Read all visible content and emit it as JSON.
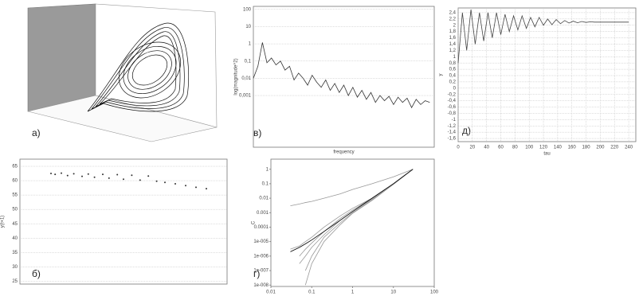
{
  "chart_data": [
    {
      "type": "attractor",
      "label": "а)"
    },
    {
      "type": "line",
      "label": "в)",
      "ylabel": "log(magnitude^2)",
      "xlabel": "frequency",
      "ylog": true,
      "grid": true,
      "color": "#333333",
      "x": [
        0,
        1,
        2,
        3,
        4,
        5,
        6,
        7,
        8,
        9,
        10,
        11,
        12,
        13,
        14,
        15,
        16,
        17,
        18,
        19,
        20,
        21,
        22,
        23,
        24,
        25,
        26,
        27,
        28,
        29,
        30,
        31,
        32,
        33,
        34,
        35,
        36,
        37,
        38,
        39
      ],
      "values": [
        0.01,
        0.05,
        1.2,
        0.08,
        0.15,
        0.06,
        0.1,
        0.03,
        0.05,
        0.008,
        0.02,
        0.01,
        0.004,
        0.015,
        0.006,
        0.003,
        0.008,
        0.002,
        0.005,
        0.0015,
        0.004,
        0.001,
        0.003,
        0.0008,
        0.002,
        0.0006,
        0.0015,
        0.0004,
        0.001,
        0.0005,
        0.0009,
        0.0003,
        0.0008,
        0.0004,
        0.0007,
        0.0002,
        0.0006,
        0.0003,
        0.0005,
        0.0004
      ],
      "xlim": [
        0,
        40
      ],
      "ylim": [
        1e-06,
        150
      ],
      "yticks": [
        100,
        10,
        1,
        {
          "value": 0.1,
          "label": "0,1"
        },
        {
          "value": 0.01,
          "label": "0,01"
        },
        {
          "value": 0.001,
          "label": "0,001"
        }
      ]
    },
    {
      "type": "line",
      "label": "д)",
      "xlabel": "tau",
      "ylabel": "y",
      "grid": true,
      "color": "#444444",
      "x": [
        0,
        6,
        12,
        18,
        24,
        30,
        36,
        42,
        48,
        54,
        60,
        66,
        72,
        78,
        84,
        90,
        96,
        102,
        108,
        114,
        120,
        126,
        132,
        138,
        144,
        150,
        156,
        162,
        168,
        174,
        180,
        186,
        192,
        198,
        204,
        210,
        216,
        222,
        228,
        234,
        240
      ],
      "values": [
        0.8,
        2.4,
        1.2,
        2.5,
        1.4,
        2.4,
        1.5,
        2.4,
        1.6,
        2.4,
        1.7,
        2.35,
        1.8,
        2.3,
        1.85,
        2.3,
        1.9,
        2.25,
        1.95,
        2.25,
        2.0,
        2.2,
        2.02,
        2.18,
        2.05,
        2.15,
        2.07,
        2.13,
        2.08,
        2.12,
        2.09,
        2.11,
        2.1,
        2.1,
        2.1,
        2.1,
        2.1,
        2.1,
        2.1,
        2.1,
        2.1
      ],
      "xlim": [
        0,
        250
      ],
      "ylim": [
        -1.7,
        2.55
      ],
      "xticks": [
        0,
        20,
        40,
        60,
        80,
        100,
        120,
        140,
        160,
        180,
        200,
        220,
        240
      ],
      "yticks": [
        {
          "value": 2.4,
          "label": "2,4"
        },
        {
          "value": 2.2,
          "label": "2,2"
        },
        2,
        {
          "value": 1.8,
          "label": "1,8"
        },
        {
          "value": 1.6,
          "label": "1,6"
        },
        {
          "value": 1.4,
          "label": "1,4"
        },
        {
          "value": 1.2,
          "label": "1,2"
        },
        1,
        {
          "value": 0.8,
          "label": "0,8"
        },
        {
          "value": 0.6,
          "label": "0,6"
        },
        {
          "value": 0.4,
          "label": "0,4"
        },
        {
          "value": 0.2,
          "label": "0,2"
        },
        0,
        {
          "value": -0.2,
          "label": "-0,2"
        },
        {
          "value": -0.4,
          "label": "-0,4"
        },
        {
          "value": -0.6,
          "label": "-0,6"
        },
        {
          "value": -0.8,
          "label": "-0,8"
        },
        -1,
        {
          "value": -1.2,
          "label": "-1,2"
        },
        {
          "value": -1.4,
          "label": "-1,4"
        },
        {
          "value": -1.6,
          "label": "-1,6"
        }
      ]
    },
    {
      "type": "scatter",
      "label": "б)",
      "ylabel": "y(t+1)",
      "grid": true,
      "color": "#333333",
      "x": [
        0.15,
        0.17,
        0.2,
        0.23,
        0.26,
        0.3,
        0.33,
        0.36,
        0.4,
        0.43,
        0.47,
        0.5,
        0.54,
        0.58,
        0.62,
        0.66,
        0.7,
        0.75,
        0.8,
        0.85,
        0.9
      ],
      "values": [
        62.5,
        62.2,
        62.6,
        61.8,
        62.4,
        61.5,
        62.3,
        61.2,
        62.2,
        60.9,
        62.1,
        60.5,
        61.9,
        60.2,
        61.6,
        59.8,
        59.4,
        58.9,
        58.3,
        57.7,
        57.2
      ],
      "xlim": [
        0,
        1
      ],
      "ylim": [
        24,
        67.5
      ],
      "yticks": [
        25,
        30,
        35,
        40,
        45,
        50,
        55,
        60,
        65
      ]
    },
    {
      "type": "line",
      "label": "г)",
      "xlabel": "r",
      "ylabel": "C",
      "xlog": true,
      "ylog": true,
      "x": [
        0.03,
        0.05,
        0.07,
        0.1,
        0.2,
        0.5,
        1,
        3,
        10,
        30
      ],
      "xlim": [
        0.01,
        100
      ],
      "ylim": [
        8e-09,
        5
      ],
      "xticks": [
        0.01,
        0.1,
        1,
        10,
        100
      ],
      "yticks": [
        1,
        0.1,
        0.01,
        0.001,
        0.0001,
        {
          "value": 1e-05,
          "label": "1e-005"
        },
        {
          "value": 1e-06,
          "label": "1e-006"
        },
        {
          "value": 1e-07,
          "label": "1e-007"
        },
        {
          "value": 1e-08,
          "label": "1e-008"
        }
      ],
      "series": [
        {
          "color": "#999999",
          "values": [
            0.003,
            0.004,
            0.005,
            0.006,
            0.01,
            0.02,
            0.04,
            0.1,
            0.3,
            1
          ]
        },
        {
          "color": "#999999",
          "values": [
            3e-06,
            5e-06,
            1e-05,
            2e-05,
            0.0001,
            0.0006,
            0.002,
            0.01,
            0.1,
            1
          ]
        },
        {
          "color": "#999999",
          "values": [
            null,
            1e-06,
            3e-06,
            8e-06,
            5e-05,
            0.0004,
            0.0015,
            0.01,
            0.1,
            1
          ]
        },
        {
          "color": "#999999",
          "values": [
            null,
            3e-07,
            1e-06,
            4e-06,
            3e-05,
            0.0003,
            0.0012,
            0.009,
            0.1,
            1
          ]
        },
        {
          "color": "#999999",
          "values": [
            null,
            null,
            1e-07,
            1e-06,
            2e-05,
            0.0002,
            0.001,
            0.008,
            0.09,
            1
          ]
        },
        {
          "color": "#999999",
          "values": [
            null,
            null,
            1e-08,
            3e-07,
            1e-05,
            0.00015,
            0.0009,
            0.007,
            0.09,
            1
          ]
        },
        {
          "color": "#000000",
          "values": [
            2e-06,
            4e-06,
            7e-06,
            1.3e-05,
            5e-05,
            0.0003,
            0.0012,
            0.01,
            0.1,
            1
          ]
        }
      ]
    }
  ]
}
